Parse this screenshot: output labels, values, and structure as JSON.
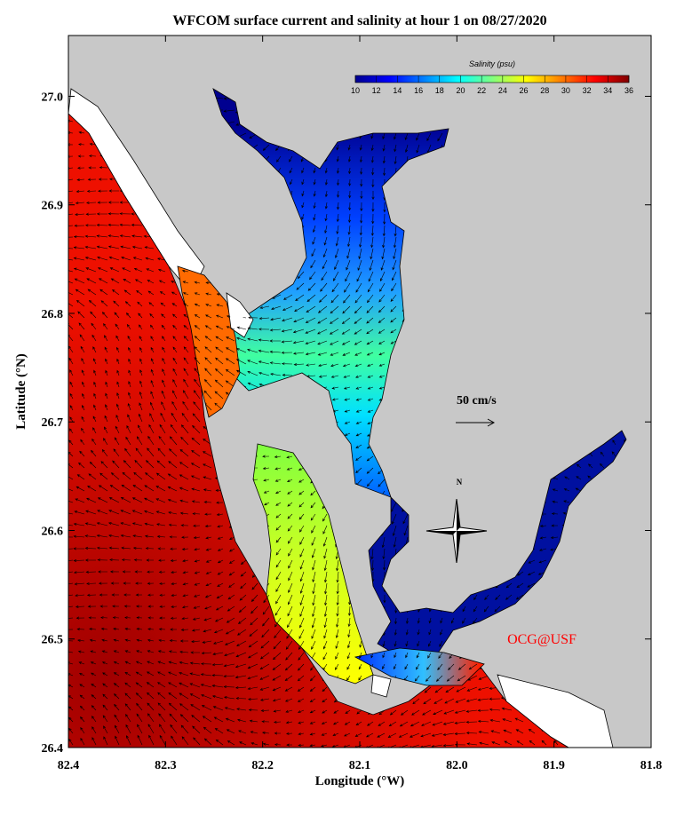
{
  "chart_data": {
    "type": "map",
    "title": "WFCOM surface current and salinity at hour 1 on 08/27/2020",
    "x_label": "Longitude (°W)",
    "y_label": "Latitude (°N)",
    "xlim": [
      82.4,
      81.8
    ],
    "xticks": [
      {
        "value": 82.4,
        "label": "82.4"
      },
      82.3,
      82.2,
      82.1,
      {
        "value": 82,
        "label": "82.0"
      },
      81.9,
      81.8
    ],
    "ylim": [
      26.4,
      27.056
    ],
    "yticks": [
      26.4,
      26.5,
      26.6,
      26.7,
      26.8,
      26.9,
      {
        "value": 27,
        "label": "27.0"
      }
    ],
    "colorbar": {
      "title": "Salinity (psu)",
      "ticks": [
        10,
        12,
        14,
        16,
        18,
        20,
        22,
        24,
        26,
        28,
        30,
        32,
        34,
        36
      ],
      "colors": [
        "#00008f",
        "#0000ff",
        "#0080ff",
        "#00ffff",
        "#80ff80",
        "#ffff00",
        "#ff8000",
        "#ff0000",
        "#800000"
      ]
    },
    "annotations": [
      "50 cm/s",
      "N",
      "OCG@USF"
    ]
  }
}
